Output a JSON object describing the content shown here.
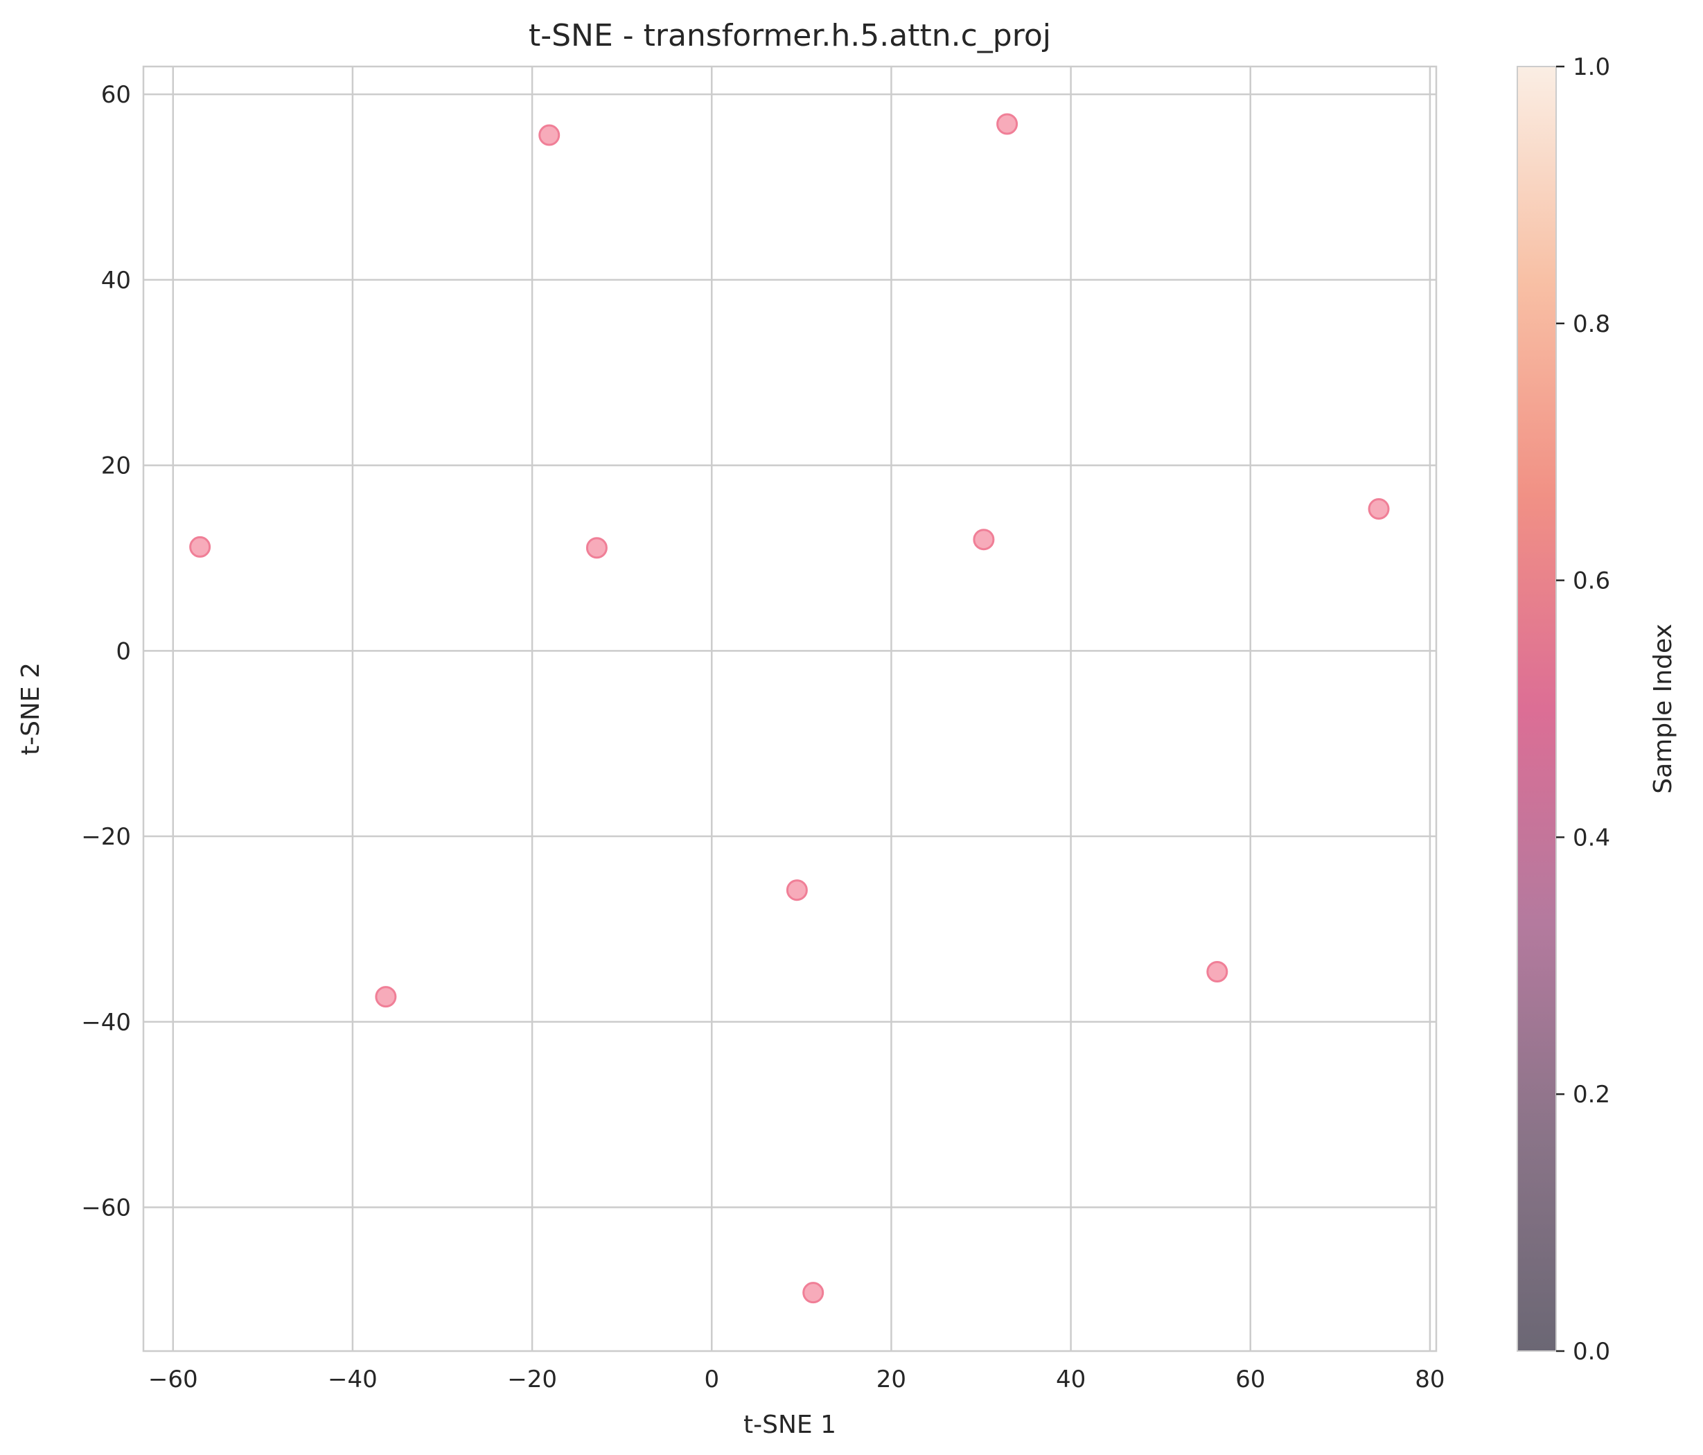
{
  "chart_data": {
    "type": "scatter",
    "title": "t-SNE - transformer.h.5.attn.c_proj",
    "xlabel": "t-SNE 1",
    "ylabel": "t-SNE 2",
    "xlim": [
      -63.3,
      80.7
    ],
    "ylim": [
      -75.5,
      63.0
    ],
    "xticks": [
      -60,
      -40,
      -20,
      0,
      20,
      40,
      60,
      80
    ],
    "yticks": [
      -60,
      -40,
      -20,
      0,
      20,
      40,
      60
    ],
    "grid": true,
    "points": [
      {
        "x": -57.0,
        "y": 11.2
      },
      {
        "x": -18.1,
        "y": 55.6
      },
      {
        "x": -12.8,
        "y": 11.1
      },
      {
        "x": 32.9,
        "y": 56.8
      },
      {
        "x": 30.3,
        "y": 12.0
      },
      {
        "x": 74.3,
        "y": 15.3
      },
      {
        "x": 9.5,
        "y": -25.8
      },
      {
        "x": -36.3,
        "y": -37.3
      },
      {
        "x": 56.3,
        "y": -34.6
      },
      {
        "x": 11.3,
        "y": -69.2
      }
    ],
    "point_color": "#f48fa3",
    "colorbar": {
      "label": "Sample Index",
      "range": [
        0.0,
        1.0
      ],
      "ticks": [
        0.0,
        0.2,
        0.4,
        0.6,
        0.8,
        1.0
      ],
      "colors": [
        "#6b6774",
        "#8a7488",
        "#b47a9e",
        "#dc6e95",
        "#f19185",
        "#f8c0a5",
        "#faeee4"
      ]
    }
  }
}
